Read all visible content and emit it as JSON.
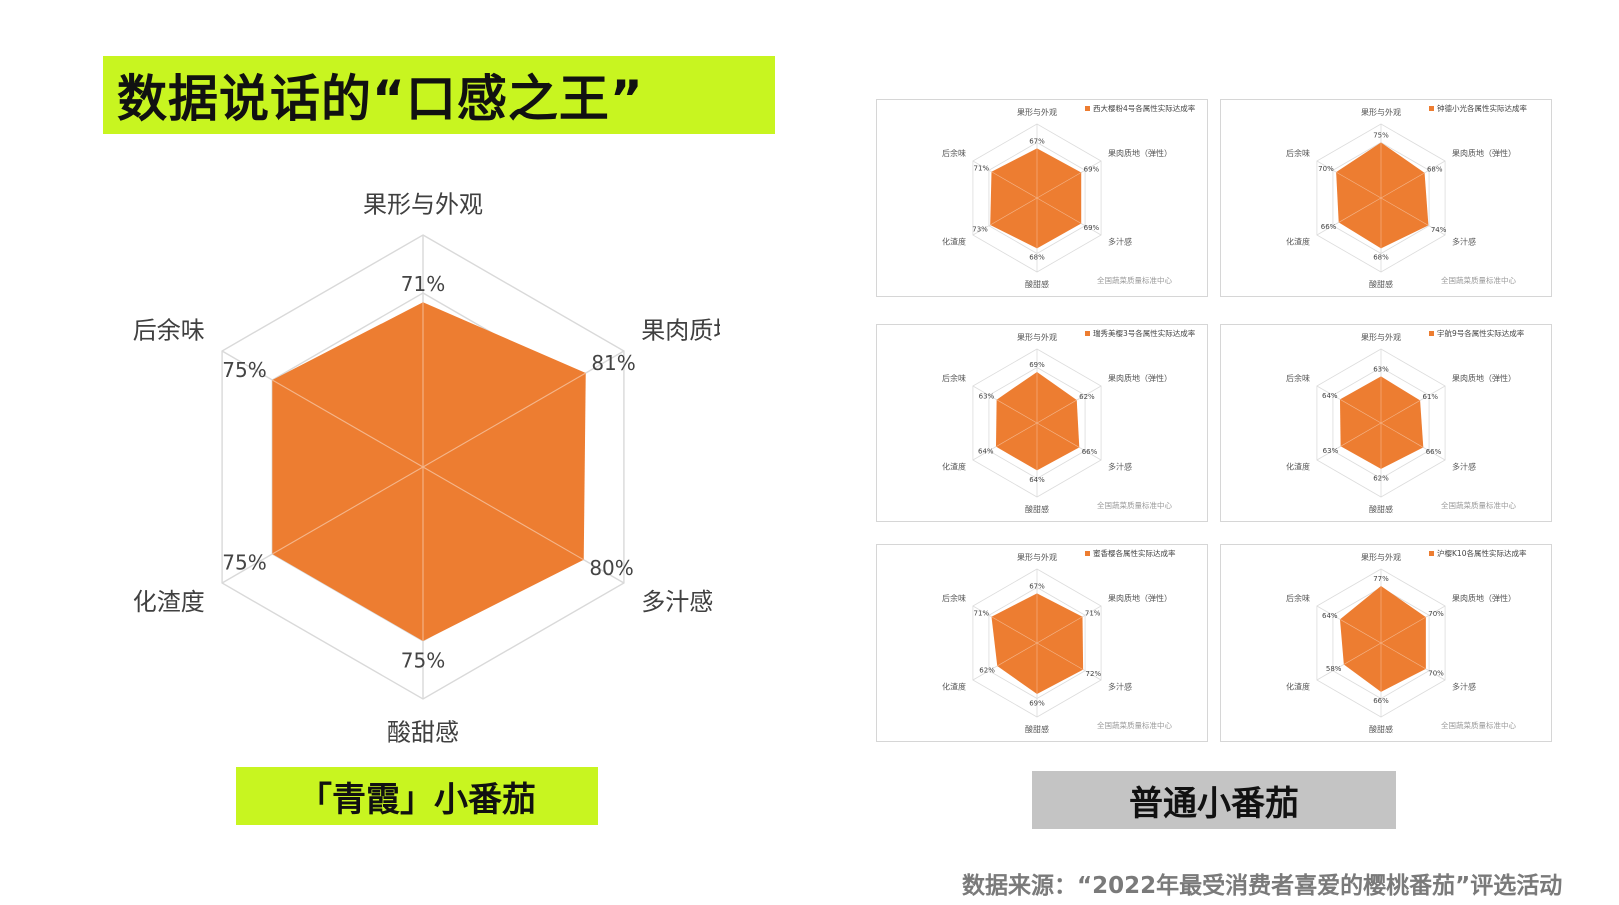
{
  "header": {
    "title": "数据说话的“口感之王”"
  },
  "chart_data": [
    {
      "type": "radar",
      "axes": [
        "果形与外观",
        "果肉质地（弹性）",
        "多汁感",
        "酸甜感",
        "化渣度",
        "后余味"
      ],
      "values": [
        71,
        81,
        80,
        75,
        75,
        75
      ],
      "value_labels": [
        "71%",
        "81%",
        "80%",
        "75%",
        "75%",
        "75%"
      ],
      "rlim": [
        0,
        100
      ],
      "color": "#ed7d31",
      "grid": true,
      "caption": "「青霞」小番茄"
    },
    {
      "type": "radar",
      "legend": "西大樱粉4号各属性实际达成率",
      "axes": [
        "果形与外观",
        "果肉质地（弹性）",
        "多汁感",
        "酸甜感",
        "化渣度",
        "后余味"
      ],
      "values": [
        67,
        69,
        69,
        68,
        73,
        71
      ],
      "value_labels": [
        "67%",
        "69%",
        "69%",
        "68%",
        "73%",
        "71%"
      ],
      "watermark": "全国蔬菜质量标准中心"
    },
    {
      "type": "radar",
      "legend": "钟德小光各属性实际达成率",
      "axes": [
        "果形与外观",
        "果肉质地（弹性）",
        "多汁感",
        "酸甜感",
        "化渣度",
        "后余味"
      ],
      "values": [
        75,
        68,
        74,
        68,
        66,
        70
      ],
      "value_labels": [
        "75%",
        "68%",
        "74%",
        "68%",
        "66%",
        "70%"
      ],
      "watermark": "全国蔬菜质量标准中心"
    },
    {
      "type": "radar",
      "legend": "瑞秀美樱3号各属性实际达成率",
      "axes": [
        "果形与外观",
        "果肉质地（弹性）",
        "多汁感",
        "酸甜感",
        "化渣度",
        "后余味"
      ],
      "values": [
        69,
        62,
        66,
        64,
        64,
        63
      ],
      "value_labels": [
        "69%",
        "62%",
        "66%",
        "64%",
        "64%",
        "63%"
      ],
      "watermark": "全国蔬菜质量标准中心"
    },
    {
      "type": "radar",
      "legend": "宇航9号各属性实际达成率",
      "axes": [
        "果形与外观",
        "果肉质地（弹性）",
        "多汁感",
        "酸甜感",
        "化渣度",
        "后余味"
      ],
      "values": [
        63,
        61,
        66,
        62,
        63,
        64
      ],
      "value_labels": [
        "63%",
        "61%",
        "66%",
        "62%",
        "63%",
        "64%"
      ],
      "watermark": "全国蔬菜质量标准中心"
    },
    {
      "type": "radar",
      "legend": "蜜香樱各属性实际达成率",
      "axes": [
        "果形与外观",
        "果肉质地（弹性）",
        "多汁感",
        "酸甜感",
        "化渣度",
        "后余味"
      ],
      "values": [
        67,
        71,
        72,
        69,
        62,
        71
      ],
      "value_labels": [
        "67%",
        "71%",
        "72%",
        "69%",
        "62%",
        "71%"
      ],
      "watermark": "全国蔬菜质量标准中心"
    },
    {
      "type": "radar",
      "legend": "沪樱K10各属性实际达成率",
      "axes": [
        "果形与外观",
        "果肉质地（弹性）",
        "多汁感",
        "酸甜感",
        "化渣度",
        "后余味"
      ],
      "values": [
        77,
        70,
        70,
        66,
        58,
        64
      ],
      "value_labels": [
        "77%",
        "70%",
        "70%",
        "66%",
        "58%",
        "64%"
      ],
      "watermark": "全国蔬菜质量标准中心"
    }
  ],
  "comparison_label": "普通小番茄",
  "source_text": "数据来源：“2022年最受消费者喜爱的樱桃番茄”评选活动",
  "colors": {
    "accent": "#c8f520",
    "series": "#ed7d31",
    "grey_box": "#c4c4c4"
  }
}
